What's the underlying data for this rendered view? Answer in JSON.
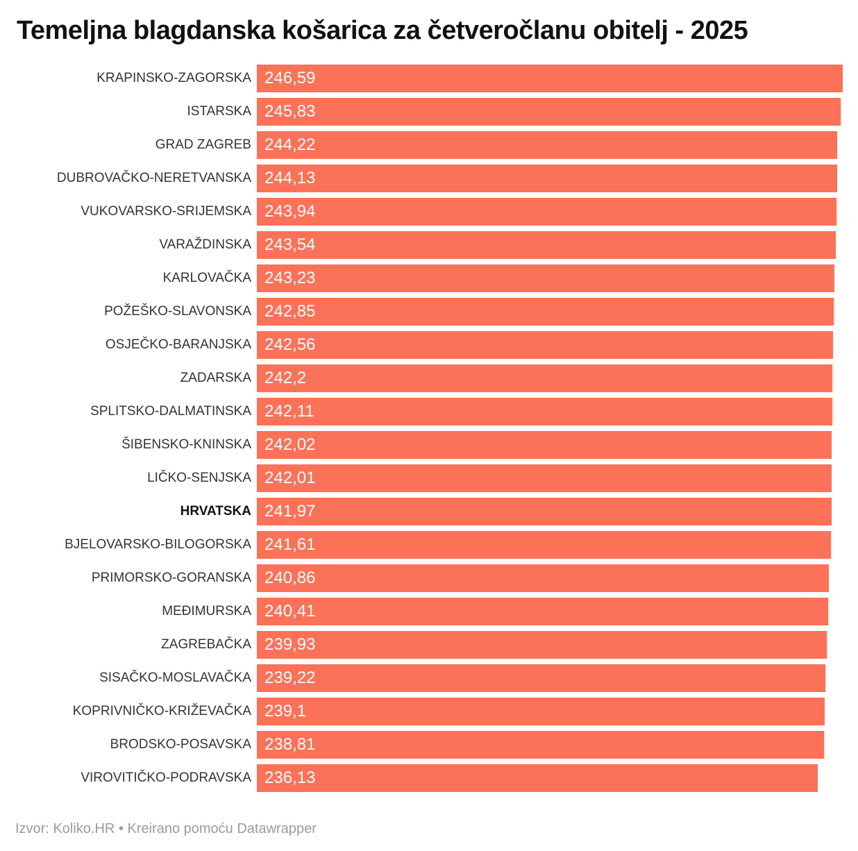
{
  "title": "Temeljna blagdanska košarica za četveročlanu obitelj - 2025",
  "footer": "Izvor: Koliko.HR • Kreirano pomoću Datawrapper",
  "colors": {
    "bar": "#fb7258",
    "value_text": "#ffffff",
    "label_text": "#333333",
    "title_text": "#111111",
    "footer_text": "#9b9b9b",
    "background": "#ffffff"
  },
  "chart_data": {
    "type": "bar",
    "orientation": "horizontal",
    "title": "Temeljna blagdanska košarica za četveročlanu obitelj - 2025",
    "xlabel": "",
    "ylabel": "",
    "xlim": [
      0,
      246.59
    ],
    "grid": false,
    "legend": false,
    "value_format": "decimal-comma",
    "bold_category": "HRVATSKA",
    "source": "Koliko.HR",
    "tool": "Datawrapper",
    "categories": [
      "KRAPINSKO-ZAGORSKA",
      "ISTARSKA",
      "GRAD ZAGREB",
      "DUBROVAČKO-NERETVANSKA",
      "VUKOVARSKO-SRIJEMSKA",
      "VARAŽDINSKA",
      "KARLOVAČKA",
      "POŽEŠKO-SLAVONSKA",
      "OSJEČKO-BARANJSKA",
      "ZADARSKA",
      "SPLITSKO-DALMATINSKA",
      "ŠIBENSKO-KNINSKA",
      "LIČKO-SENJSKA",
      "HRVATSKA",
      "BJELOVARSKO-BILOGORSKA",
      "PRIMORSKO-GORANSKA",
      "MEĐIMURSKA",
      "ZAGREBAČKA",
      "SISAČKO-MOSLAVAČKA",
      "KOPRIVNIČKO-KRIŽEVAČKA",
      "BRODSKO-POSAVSKA",
      "VIROVITIČKO-PODRAVSKA"
    ],
    "values": [
      246.59,
      245.83,
      244.22,
      244.13,
      243.94,
      243.54,
      243.23,
      242.85,
      242.56,
      242.2,
      242.11,
      242.02,
      242.01,
      241.97,
      241.61,
      240.86,
      240.41,
      239.93,
      239.22,
      239.1,
      238.81,
      236.13
    ],
    "value_labels": [
      "246,59",
      "245,83",
      "244,22",
      "244,13",
      "243,94",
      "243,54",
      "243,23",
      "242,85",
      "242,56",
      "242,2",
      "242,11",
      "242,02",
      "242,01",
      "241,97",
      "241,61",
      "240,86",
      "240,41",
      "239,93",
      "239,22",
      "239,1",
      "238,81",
      "236,13"
    ]
  }
}
